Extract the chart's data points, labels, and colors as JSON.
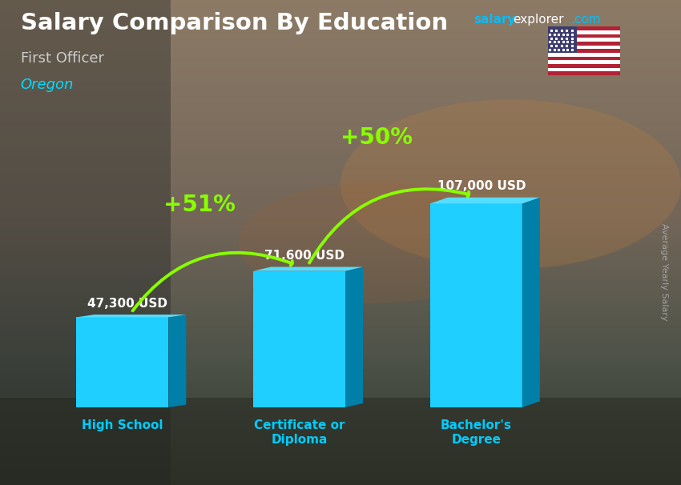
{
  "title": "Salary Comparison By Education",
  "subtitle": "First Officer",
  "location": "Oregon",
  "ylabel": "Average Yearly Salary",
  "categories": [
    "High School",
    "Certificate or\nDiploma",
    "Bachelor's\nDegree"
  ],
  "values": [
    47300,
    71600,
    107000
  ],
  "value_labels": [
    "47,300 USD",
    "71,600 USD",
    "107,000 USD"
  ],
  "bar_color_light": "#1ECFFF",
  "bar_color_mid": "#00AADD",
  "bar_color_dark": "#007FA8",
  "bar_color_top": "#55DDFF",
  "pct_labels": [
    "+51%",
    "+50%"
  ],
  "title_color": "#FFFFFF",
  "subtitle_color": "#CCCCCC",
  "location_color": "#00DDFF",
  "ylabel_color": "#AAAAAA",
  "bar_label_color": "#FFFFFF",
  "pct_color": "#88FF00",
  "arrow_color": "#88FF00",
  "xtick_color": "#00CCFF",
  "salary_color1": "#00BFFF",
  "salary_color2": "#FFFFFF",
  "background_color": "#4a5a58",
  "figsize": [
    8.5,
    6.06
  ],
  "dpi": 100
}
